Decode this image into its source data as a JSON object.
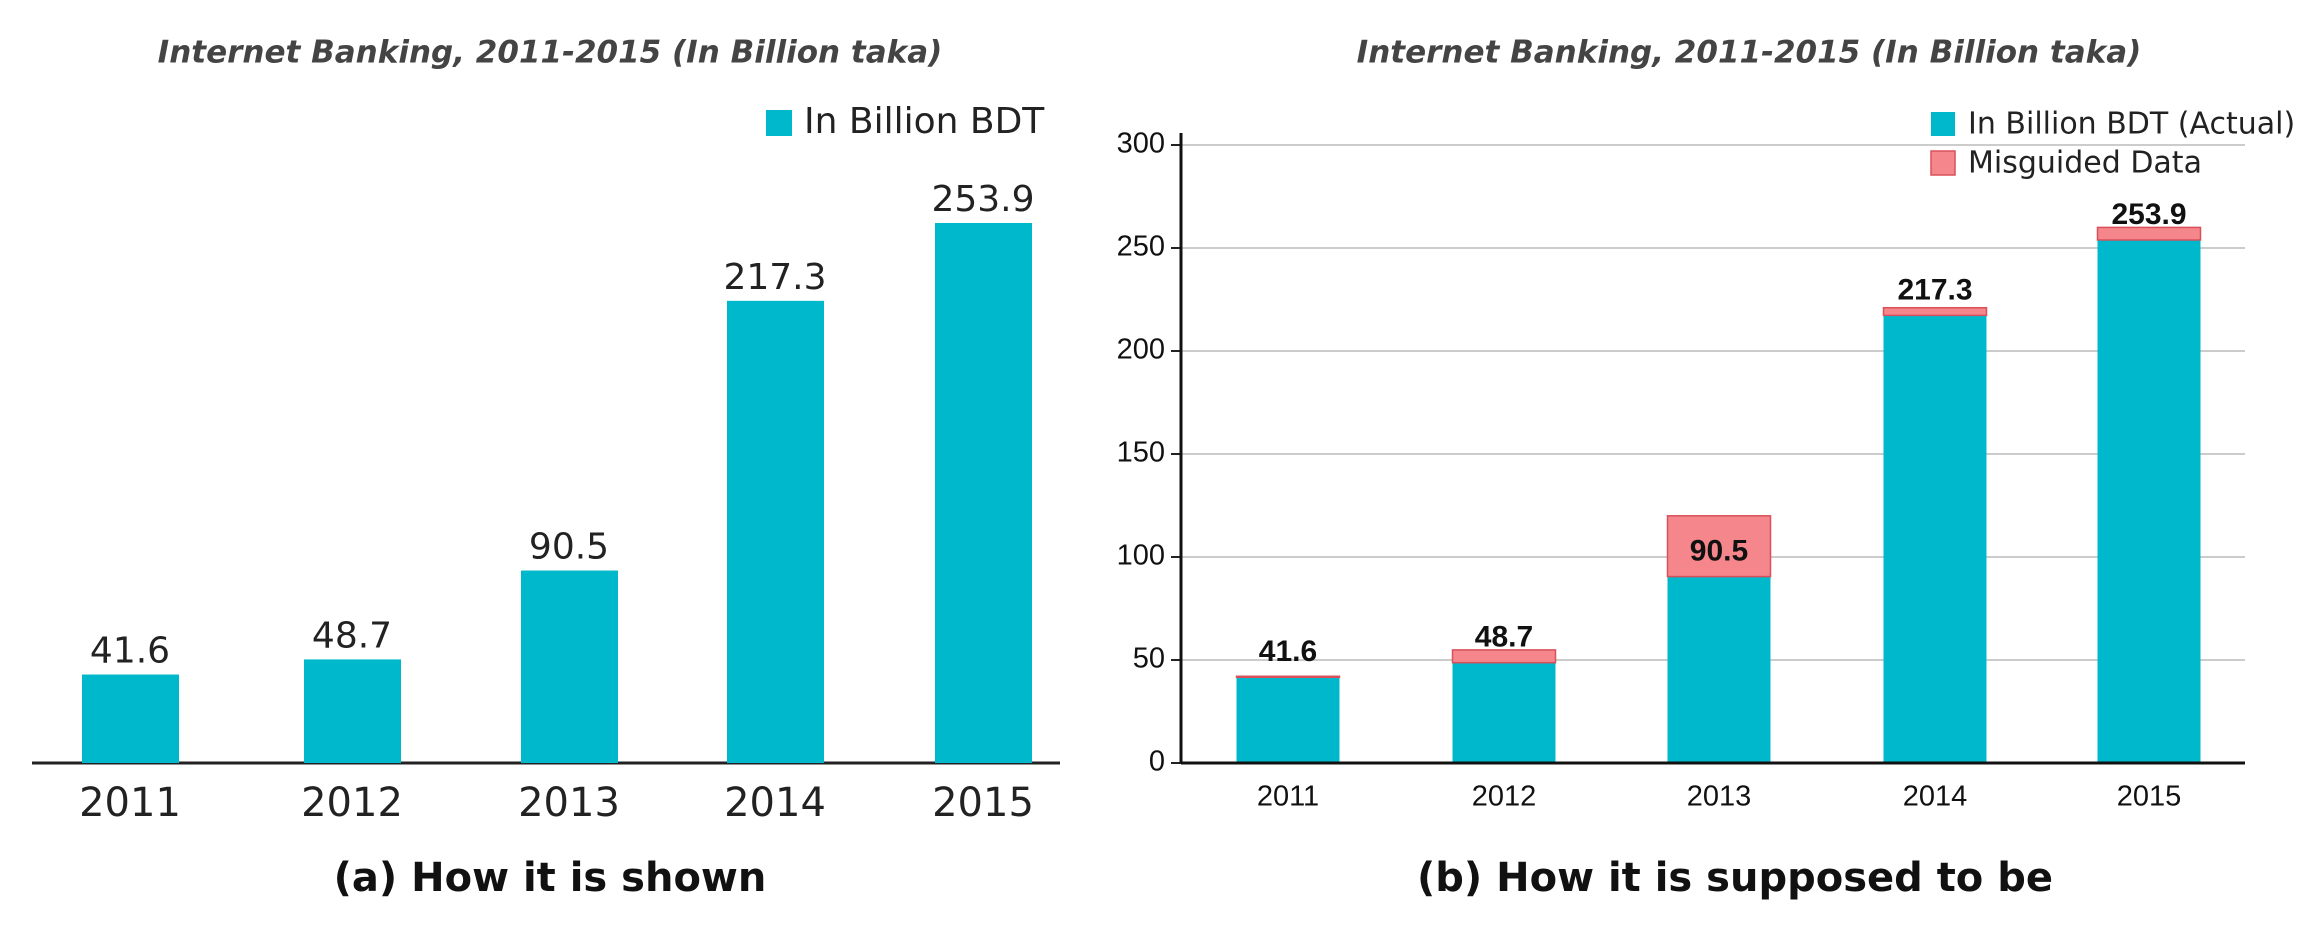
{
  "chart_data": [
    {
      "type": "bar",
      "title": "Internet Banking, 2011-2015 (In Billion taka)",
      "caption": "(a) How it is shown",
      "categories": [
        "2011",
        "2012",
        "2013",
        "2014",
        "2015"
      ],
      "series": [
        {
          "name": "In Billion BDT",
          "color": "#00b8cc",
          "values": [
            41.6,
            48.7,
            90.5,
            217.3,
            253.9
          ]
        }
      ],
      "legend": "top-right"
    },
    {
      "type": "stacked_bar",
      "title": "Internet Banking, 2011-2015 (In Billion taka)",
      "caption": "(b) How it is supposed to be",
      "categories": [
        "2011",
        "2012",
        "2013",
        "2014",
        "2015"
      ],
      "series": [
        {
          "name": "In Billion BDT (Actual)",
          "color": "#00b8cc",
          "values": [
            41.6,
            48.7,
            90.5,
            217.3,
            253.9
          ]
        },
        {
          "name": "Misguided Data",
          "color": "#f4868c",
          "values": [
            0.5,
            6.2,
            29.5,
            3.7,
            6.1
          ]
        }
      ],
      "ylim": [
        0,
        300
      ],
      "yticks": [
        0,
        50,
        100,
        150,
        200,
        250,
        300
      ],
      "grid": true,
      "legend": "top-right"
    }
  ]
}
